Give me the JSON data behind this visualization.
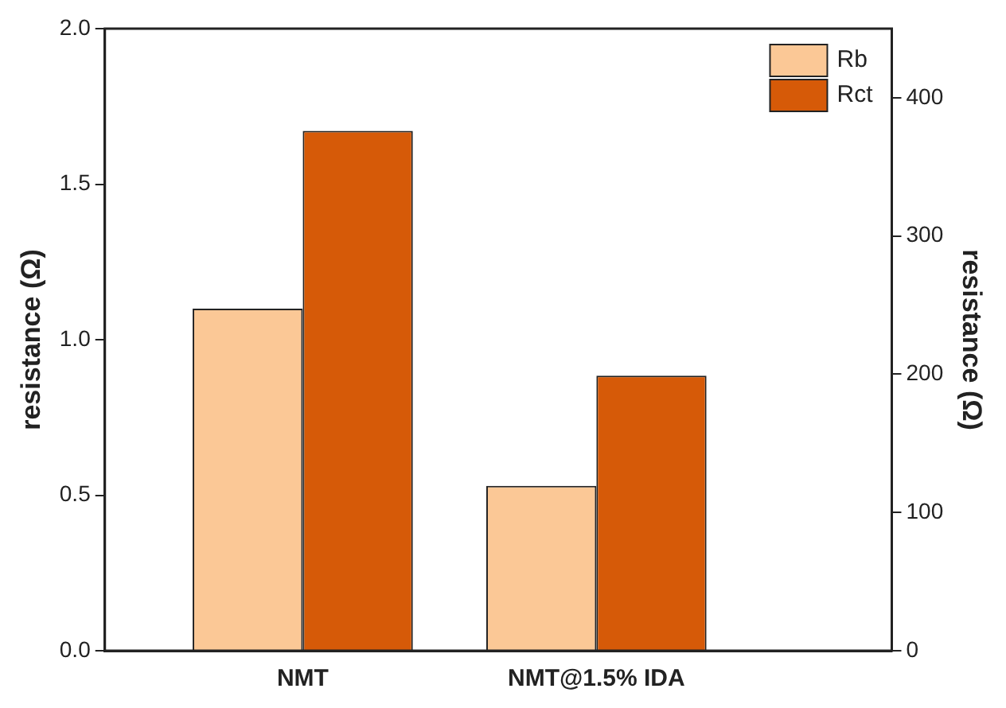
{
  "chart_data": {
    "type": "bar",
    "categories": [
      "NMT",
      "NMT@1.5% IDA"
    ],
    "ylabel": "resistance (Ω)",
    "y2label": "resistance (Ω)",
    "series": [
      {
        "name": "Rb",
        "color": "#fbc896",
        "values": [
          1.1,
          0.53
        ]
      },
      {
        "name": "Rct",
        "color": "#d65a08",
        "values": [
          376,
          199
        ],
        "axis": "y2"
      }
    ],
    "ylim": [
      0,
      2
    ],
    "yticks": [
      {
        "value": 0,
        "label": "0.0"
      },
      {
        "value": 0.5,
        "label": "0.5"
      },
      {
        "value": 1,
        "label": "1.0"
      },
      {
        "value": 1.5,
        "label": "1.5"
      },
      {
        "value": 2,
        "label": "2.0"
      }
    ],
    "y2lim": [
      0,
      450
    ],
    "y2ticks": [
      0,
      100,
      200,
      300,
      400
    ],
    "grid": false,
    "legend": "top right"
  }
}
